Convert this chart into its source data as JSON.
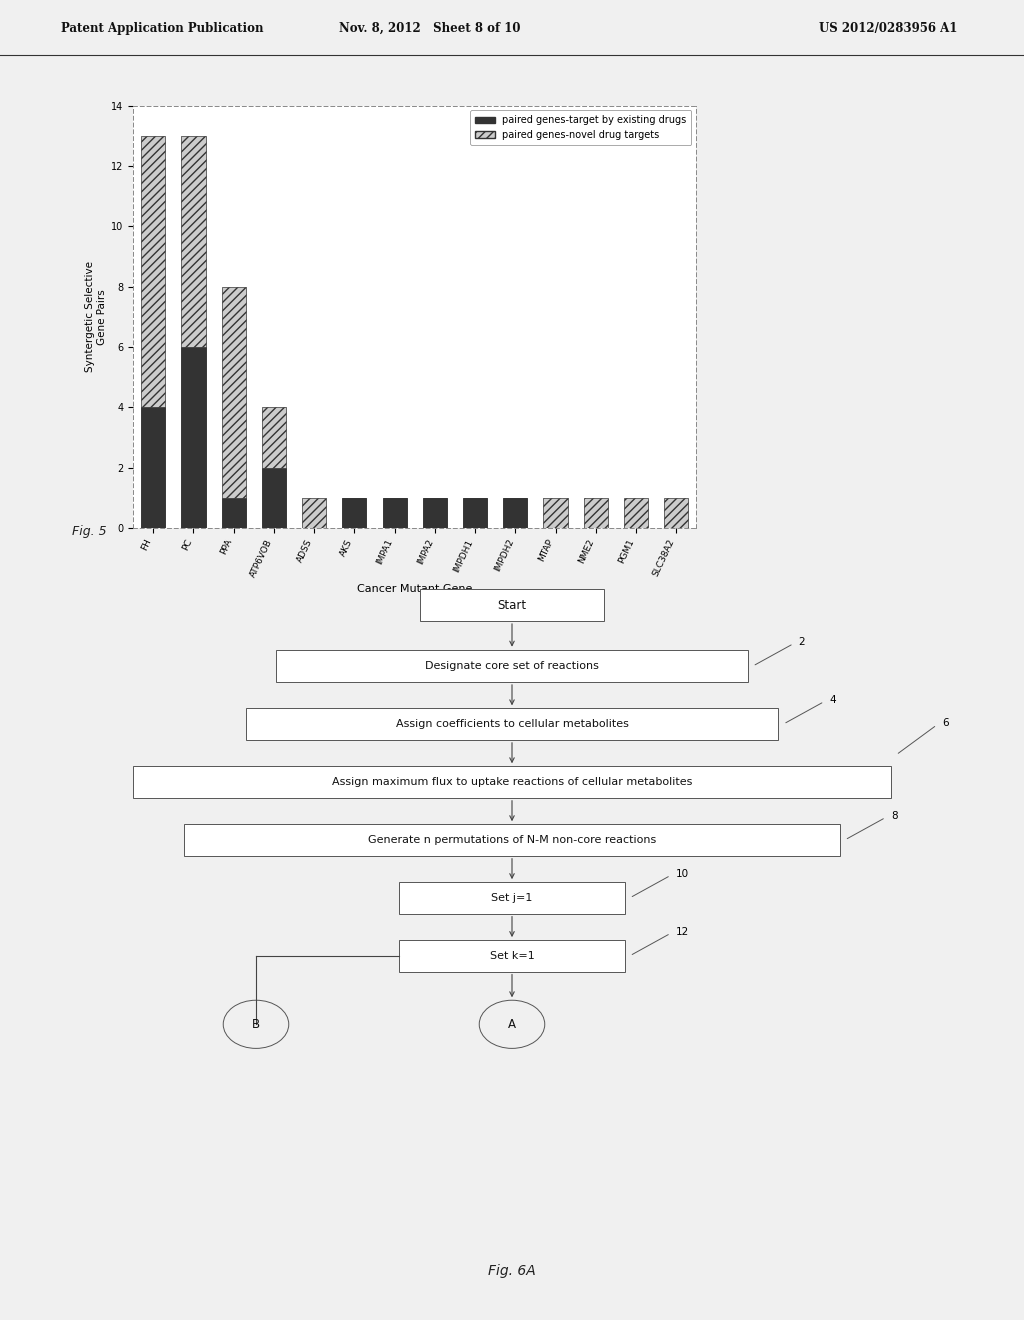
{
  "header_left": "Patent Application Publication",
  "header_mid": "Nov. 8, 2012   Sheet 8 of 10",
  "header_right": "US 2012/0283956 A1",
  "chart": {
    "categories": [
      "FH",
      "PC",
      "PPA",
      "ATP6VOB",
      "ADSS",
      "AKS",
      "IMPA1",
      "IMPA2",
      "IMPDH1",
      "IMPDH2",
      "MTAP",
      "NME2",
      "PGM1",
      "SLC38A2"
    ],
    "solid_values": [
      4,
      6,
      1,
      2,
      0,
      1,
      1,
      1,
      1,
      1,
      0,
      0,
      0,
      0
    ],
    "hatch_values": [
      9,
      7,
      7,
      2,
      1,
      0,
      0,
      0,
      0,
      0,
      1,
      1,
      1,
      1
    ],
    "ylabel": "Syntergetic Selective\nGene Pairs",
    "xlabel": "Cancer Mutant Gene",
    "ylim": [
      0,
      14
    ],
    "yticks": [
      0,
      2,
      4,
      6,
      8,
      10,
      12,
      14
    ],
    "legend1": "paired genes-target by existing drugs",
    "legend2": "paired genes-novel drug targets",
    "fig5_label": "Fig. 5",
    "solid_color": "#333333",
    "hatch_pattern": "////"
  },
  "flowchart": {
    "start_label": "Start",
    "box1": "Designate core set of reactions",
    "box1_tag": "2",
    "box2": "Assign coefficients to cellular metabolites",
    "box2_tag": "4",
    "box3": "Assign maximum flux to uptake reactions of cellular metabolites",
    "box3_tag": "6",
    "box4": "Generate n permutations of N-M non-core reactions",
    "box4_tag": "8",
    "box5": "Set j=1",
    "box5_tag": "10",
    "box6": "Set k=1",
    "box6_tag": "12",
    "circle_B": "B",
    "circle_A": "A",
    "fig6a_label": "Fig. 6A"
  },
  "bg_color": "#f5f5f5",
  "text_color": "#333333"
}
